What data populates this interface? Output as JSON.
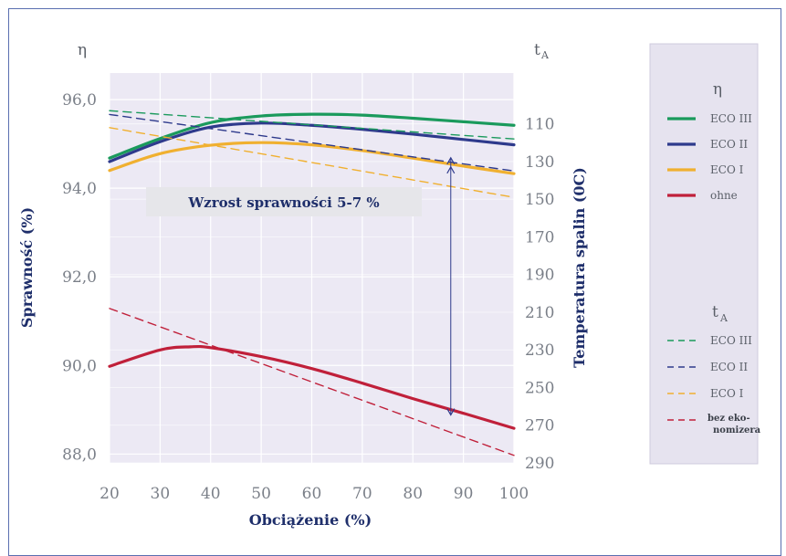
{
  "chart_data": {
    "type": "line",
    "xlabel": "Obciążenie (%)",
    "ylabel": "Sprawność (%)",
    "y2label": "Temperatura spalin (0C)",
    "y_symbol": "η",
    "y2_symbol": "t",
    "y2_symbol_sub": "A",
    "x_ticks": [
      20,
      30,
      40,
      50,
      60,
      70,
      80,
      90,
      100
    ],
    "xlim": [
      20,
      100
    ],
    "y_ticks": [
      "96,0",
      "94,0",
      "92,0",
      "90,0",
      "88,0"
    ],
    "y_tick_values": [
      96,
      94,
      92,
      90,
      88
    ],
    "ylim": [
      87.8,
      96.6
    ],
    "y2_ticks": [
      110,
      130,
      150,
      170,
      190,
      210,
      230,
      250,
      270,
      290
    ],
    "y2lim": [
      83,
      290
    ],
    "annotation": "Wzrost sprawności 5-7 %",
    "grid": true,
    "legend_position": "right",
    "legend_eta": {
      "title": "η",
      "items": [
        {
          "label": "ECO III",
          "color": "#1a9a5c"
        },
        {
          "label": "ECO II",
          "color": "#2e3a8c"
        },
        {
          "label": "ECO I",
          "color": "#f0b030"
        },
        {
          "label": "ohne",
          "color": "#c0203a"
        }
      ]
    },
    "legend_t": {
      "title": "t",
      "title_sub": "A",
      "items": [
        {
          "label": "ECO III",
          "color": "#1a9a5c"
        },
        {
          "label": "ECO II",
          "color": "#2e3a8c"
        },
        {
          "label": "ECO I",
          "color": "#f0b030"
        },
        {
          "label": "bez eko-",
          "label2": "nomizera",
          "color": "#c0203a"
        }
      ]
    },
    "series": [
      {
        "axis": "y",
        "style": "solid",
        "color": "#1a9a5c",
        "x": [
          20,
          30,
          40,
          50,
          60,
          70,
          80,
          90,
          100
        ],
        "y": [
          94.68,
          95.12,
          95.48,
          95.63,
          95.67,
          95.65,
          95.58,
          95.5,
          95.42
        ]
      },
      {
        "axis": "y",
        "style": "solid",
        "color": "#2e3a8c",
        "x": [
          20,
          30,
          40,
          50,
          60,
          70,
          80,
          90,
          100
        ],
        "y": [
          94.6,
          95.05,
          95.38,
          95.47,
          95.42,
          95.33,
          95.22,
          95.1,
          94.98
        ]
      },
      {
        "axis": "y",
        "style": "solid",
        "color": "#f0b030",
        "x": [
          20,
          30,
          40,
          50,
          60,
          70,
          80,
          90,
          100
        ],
        "y": [
          94.4,
          94.78,
          94.97,
          95.03,
          94.98,
          94.85,
          94.68,
          94.5,
          94.33
        ]
      },
      {
        "axis": "y",
        "style": "solid",
        "color": "#c0203a",
        "x": [
          20,
          30,
          36,
          40,
          50,
          60,
          70,
          80,
          90,
          100
        ],
        "y": [
          89.98,
          90.35,
          90.42,
          90.4,
          90.2,
          89.93,
          89.6,
          89.25,
          88.92,
          88.58
        ]
      },
      {
        "axis": "y2",
        "style": "dashed",
        "color": "#1a9a5c",
        "x": [
          20,
          100
        ],
        "y": [
          103,
          118
        ]
      },
      {
        "axis": "y2",
        "style": "dashed",
        "color": "#2e3a8c",
        "x": [
          20,
          100
        ],
        "y": [
          105,
          135
        ]
      },
      {
        "axis": "y2",
        "style": "dashed",
        "color": "#f0b030",
        "x": [
          20,
          100
        ],
        "y": [
          112,
          149
        ]
      },
      {
        "axis": "y2",
        "style": "dashed",
        "color": "#c0203a",
        "x": [
          20,
          100
        ],
        "y": [
          208,
          286
        ]
      }
    ]
  }
}
